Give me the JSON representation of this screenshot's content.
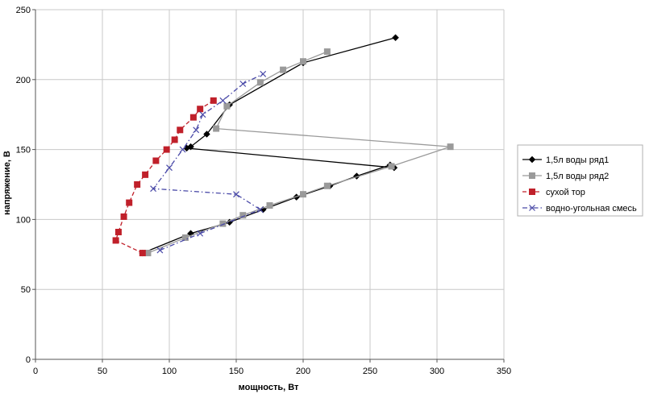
{
  "chart_data": {
    "type": "scatter",
    "title": "",
    "xlabel": "мощность, Вт",
    "ylabel": "напряжение, В",
    "xlim": [
      0,
      350
    ],
    "ylim": [
      0,
      250
    ],
    "xticks": [
      "0",
      "50",
      "100",
      "150",
      "200",
      "250",
      "300",
      "350"
    ],
    "yticks": [
      "0",
      "50",
      "100",
      "150",
      "200",
      "250"
    ],
    "grid": true,
    "legend_position": "right",
    "series": [
      {
        "name": "1,5л воды ряд1",
        "color": "#000000",
        "marker": "diamond",
        "dash": "solid",
        "points": [
          [
            80,
            76
          ],
          [
            116,
            90
          ],
          [
            145,
            98
          ],
          [
            170,
            107
          ],
          [
            195,
            116
          ],
          [
            220,
            124
          ],
          [
            240,
            131
          ],
          [
            265,
            139
          ],
          [
            268,
            137
          ],
          [
            113,
            151
          ],
          [
            116,
            152
          ],
          [
            128,
            161
          ],
          [
            145,
            182
          ],
          [
            200,
            212
          ],
          [
            269,
            230
          ]
        ]
      },
      {
        "name": "1,5л воды ряд2",
        "color": "#9a9a9a",
        "marker": "square",
        "dash": "solid",
        "points": [
          [
            84,
            76
          ],
          [
            112,
            87
          ],
          [
            140,
            97
          ],
          [
            155,
            103
          ],
          [
            175,
            110
          ],
          [
            200,
            118
          ],
          [
            218,
            124
          ],
          [
            266,
            138
          ],
          [
            310,
            152
          ],
          [
            135,
            165
          ],
          [
            143,
            181
          ],
          [
            168,
            198
          ],
          [
            185,
            207
          ],
          [
            200,
            213
          ],
          [
            218,
            220
          ]
        ]
      },
      {
        "name": "сухой тор",
        "color": "#c0202a",
        "marker": "square",
        "dash": "dashed",
        "points": [
          [
            80,
            76
          ],
          [
            60,
            85
          ],
          [
            62,
            91
          ],
          [
            66,
            102
          ],
          [
            70,
            112
          ],
          [
            76,
            125
          ],
          [
            82,
            132
          ],
          [
            90,
            142
          ],
          [
            98,
            150
          ],
          [
            104,
            157
          ],
          [
            108,
            164
          ],
          [
            118,
            173
          ],
          [
            123,
            179
          ],
          [
            133,
            185
          ]
        ]
      },
      {
        "name": "водно-угольная смесь",
        "color": "#4a4aa8",
        "marker": "x",
        "dash": "dashdot",
        "points": [
          [
            93,
            78
          ],
          [
            123,
            90
          ],
          [
            168,
            107
          ],
          [
            150,
            118
          ],
          [
            88,
            122
          ],
          [
            100,
            137
          ],
          [
            110,
            150
          ],
          [
            120,
            164
          ],
          [
            125,
            175
          ],
          [
            140,
            185
          ],
          [
            155,
            197
          ],
          [
            170,
            204
          ]
        ]
      }
    ]
  }
}
